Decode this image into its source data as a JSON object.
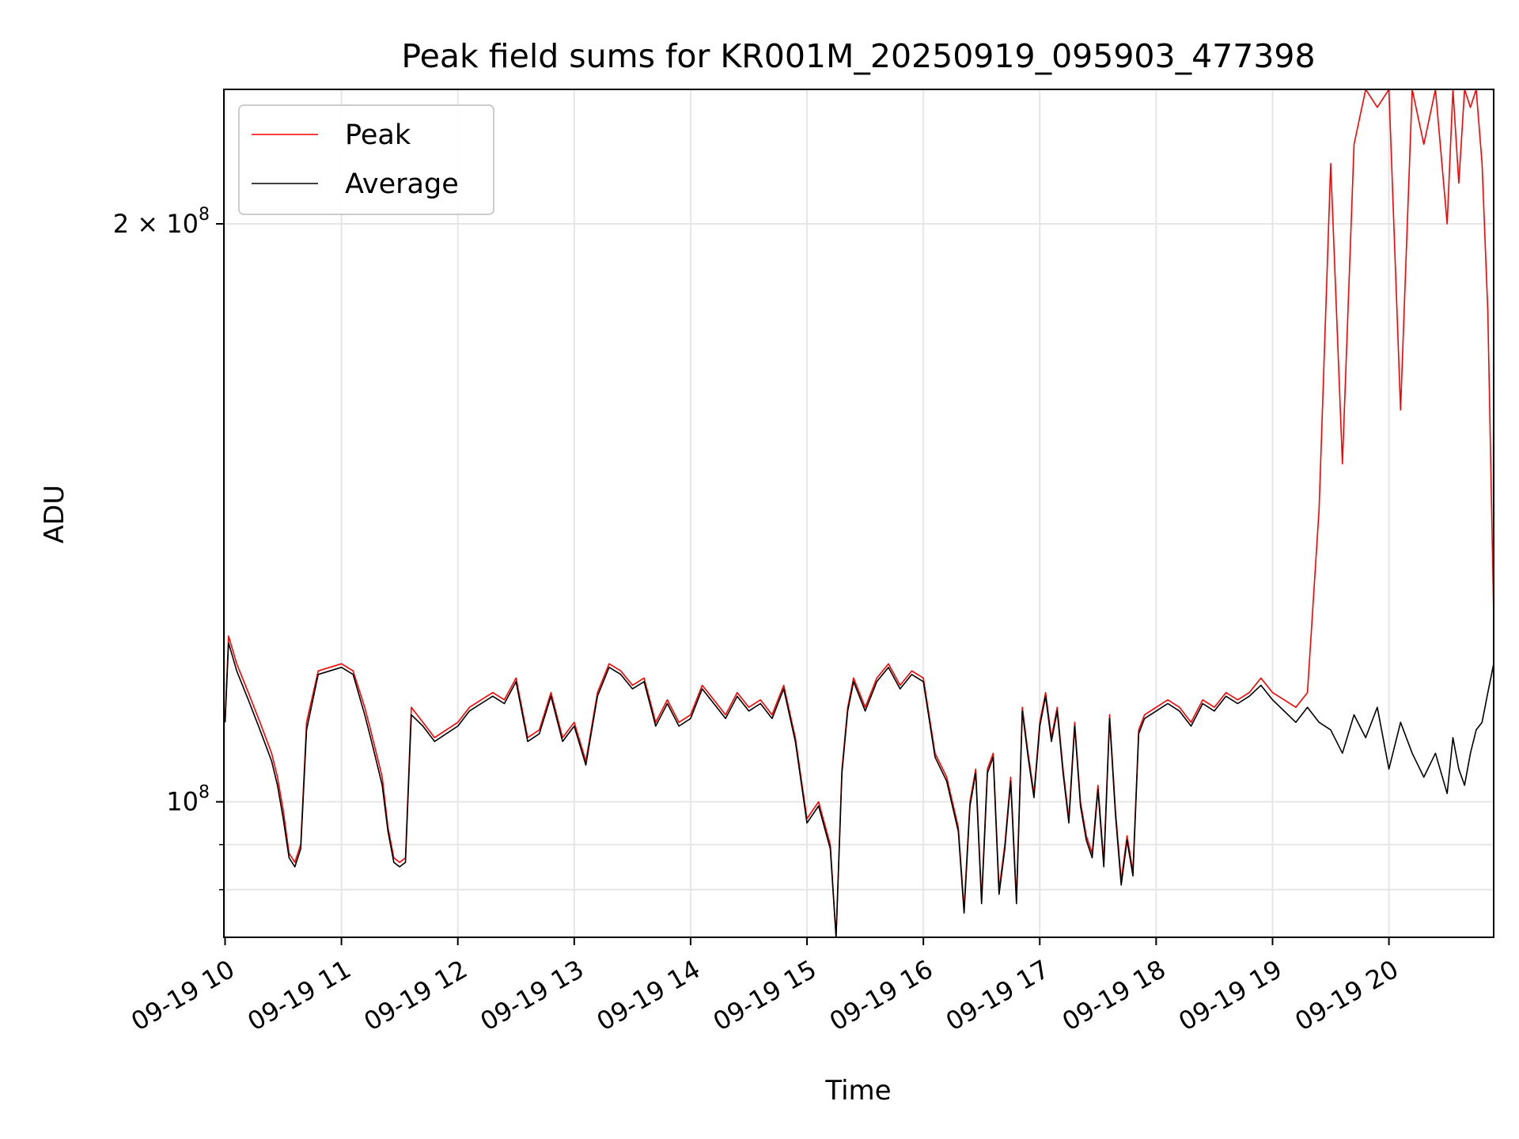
{
  "chart_data": {
    "type": "line",
    "title": "Peak field sums for KR001M_20250919_095903_477398",
    "xlabel": "Time",
    "ylabel": "ADU",
    "yscale": "log",
    "xlim": [
      9.99,
      20.9
    ],
    "ylim": [
      85000000,
      235000000
    ],
    "grid": true,
    "legend_position": "top-left",
    "x_ticks": [
      {
        "value": 10,
        "label": "09-19 10"
      },
      {
        "value": 11,
        "label": "09-19 11"
      },
      {
        "value": 12,
        "label": "09-19 12"
      },
      {
        "value": 13,
        "label": "09-19 13"
      },
      {
        "value": 14,
        "label": "09-19 14"
      },
      {
        "value": 15,
        "label": "09-19 15"
      },
      {
        "value": 16,
        "label": "09-19 16"
      },
      {
        "value": 17,
        "label": "09-19 17"
      },
      {
        "value": 18,
        "label": "09-19 18"
      },
      {
        "value": 19,
        "label": "09-19 19"
      },
      {
        "value": 20,
        "label": "09-19 20"
      }
    ],
    "y_ticks_major": [
      {
        "value": 100000000,
        "label": "10",
        "exp": "8"
      },
      {
        "value": 200000000,
        "label": "2 × 10",
        "exp": "8"
      }
    ],
    "y_ticks_minor": [
      90000000,
      95000000
    ],
    "x": [
      10.0,
      10.03,
      10.1,
      10.2,
      10.3,
      10.4,
      10.45,
      10.5,
      10.55,
      10.6,
      10.65,
      10.7,
      10.8,
      10.9,
      11.0,
      11.1,
      11.2,
      11.25,
      11.3,
      11.35,
      11.4,
      11.45,
      11.5,
      11.55,
      11.6,
      11.7,
      11.8,
      11.9,
      12.0,
      12.1,
      12.2,
      12.3,
      12.4,
      12.5,
      12.6,
      12.7,
      12.8,
      12.9,
      13.0,
      13.1,
      13.2,
      13.3,
      13.4,
      13.5,
      13.6,
      13.7,
      13.8,
      13.9,
      14.0,
      14.1,
      14.2,
      14.3,
      14.4,
      14.5,
      14.6,
      14.7,
      14.8,
      14.9,
      15.0,
      15.1,
      15.2,
      15.25,
      15.3,
      15.35,
      15.4,
      15.5,
      15.6,
      15.7,
      15.8,
      15.9,
      16.0,
      16.1,
      16.2,
      16.3,
      16.35,
      16.4,
      16.45,
      16.5,
      16.55,
      16.6,
      16.65,
      16.7,
      16.75,
      16.8,
      16.85,
      16.9,
      16.95,
      17.0,
      17.05,
      17.1,
      17.15,
      17.2,
      17.25,
      17.3,
      17.35,
      17.4,
      17.45,
      17.5,
      17.55,
      17.6,
      17.65,
      17.7,
      17.75,
      17.8,
      17.85,
      17.9,
      18.0,
      18.1,
      18.2,
      18.3,
      18.4,
      18.5,
      18.6,
      18.7,
      18.8,
      18.9,
      19.0,
      19.1,
      19.2,
      19.3,
      19.4,
      19.5,
      19.6,
      19.7,
      19.8,
      19.9,
      20.0,
      20.1,
      20.2,
      20.3,
      20.4,
      20.5,
      20.55,
      20.6,
      20.65,
      20.7,
      20.75,
      20.8,
      20.85,
      20.9
    ],
    "series": [
      {
        "name": "Peak",
        "color": "#ff0000",
        "values": [
          110000000,
          122000000,
          118000000,
          114000000,
          110000000,
          106000000,
          103000000,
          99000000,
          94000000,
          93000000,
          95000000,
          110000000,
          117000000,
          117500000,
          118000000,
          117000000,
          112000000,
          109000000,
          106000000,
          103000000,
          97000000,
          93500000,
          93000000,
          93500000,
          112000000,
          110000000,
          108000000,
          109000000,
          110000000,
          112000000,
          113000000,
          114000000,
          113000000,
          116000000,
          108000000,
          109000000,
          114000000,
          108000000,
          110000000,
          105000000,
          114000000,
          118000000,
          117000000,
          115000000,
          116000000,
          110000000,
          113000000,
          110000000,
          111000000,
          115000000,
          113000000,
          111000000,
          114000000,
          112000000,
          113000000,
          111000000,
          115000000,
          108000000,
          98000000,
          100000000,
          95000000,
          85000000,
          104000000,
          112000000,
          116000000,
          112000000,
          116000000,
          118000000,
          115000000,
          117000000,
          116000000,
          106000000,
          103000000,
          97000000,
          88000000,
          100000000,
          104000000,
          89000000,
          104000000,
          106000000,
          90000000,
          95000000,
          103000000,
          89000000,
          112000000,
          106000000,
          101000000,
          110000000,
          114000000,
          108000000,
          112000000,
          104000000,
          98000000,
          110000000,
          100000000,
          96000000,
          94000000,
          102000000,
          93000000,
          111000000,
          99000000,
          91000000,
          96000000,
          92000000,
          109000000,
          111000000,
          112000000,
          113000000,
          112000000,
          110000000,
          113000000,
          112000000,
          114000000,
          113000000,
          114000000,
          116000000,
          114000000,
          113000000,
          112000000,
          114000000,
          142000000,
          215000000,
          150000000,
          220000000,
          240000000,
          230000000,
          245000000,
          160000000,
          240000000,
          220000000,
          245000000,
          200000000,
          240000000,
          210000000,
          245000000,
          230000000,
          245000000,
          215000000,
          180000000,
          125000000
        ],
        "note_unused": null
      },
      {
        "name": "Average",
        "color": "#000000",
        "values": [
          110000000,
          121000000,
          117000000,
          113000000,
          109000000,
          105000000,
          102000000,
          98000000,
          93500000,
          92500000,
          94500000,
          109000000,
          116500000,
          117000000,
          117500000,
          116500000,
          111000000,
          108000000,
          105000000,
          102000000,
          96500000,
          93000000,
          92500000,
          93000000,
          111000000,
          109500000,
          107500000,
          108500000,
          109500000,
          111500000,
          112500000,
          113500000,
          112500000,
          115500000,
          107500000,
          108500000,
          113500000,
          107500000,
          109500000,
          104500000,
          113500000,
          117500000,
          116500000,
          114500000,
          115500000,
          109500000,
          112500000,
          109500000,
          110500000,
          114500000,
          112500000,
          110500000,
          113500000,
          111500000,
          112500000,
          110500000,
          114500000,
          107500000,
          97500000,
          99500000,
          94500000,
          84500000,
          103500000,
          111500000,
          115500000,
          111500000,
          115500000,
          117500000,
          114500000,
          116500000,
          115500000,
          105500000,
          102500000,
          96500000,
          87500000,
          99500000,
          103500000,
          88500000,
          103500000,
          105500000,
          89500000,
          94500000,
          102500000,
          88500000,
          111500000,
          105500000,
          100500000,
          109500000,
          113500000,
          107500000,
          111500000,
          103500000,
          97500000,
          109500000,
          99500000,
          95500000,
          93500000,
          101500000,
          92500000,
          110500000,
          98500000,
          90500000,
          95500000,
          91500000,
          108500000,
          110500000,
          111500000,
          112500000,
          111500000,
          109500000,
          112500000,
          111500000,
          113500000,
          112500000,
          113500000,
          115000000,
          113000000,
          111500000,
          110000000,
          112000000,
          110000000,
          109000000,
          106000000,
          111000000,
          108000000,
          112000000,
          104000000,
          110000000,
          106000000,
          103000000,
          106000000,
          101000000,
          108000000,
          104000000,
          102000000,
          106000000,
          109000000,
          110000000,
          114000000,
          118000000
        ]
      }
    ]
  }
}
